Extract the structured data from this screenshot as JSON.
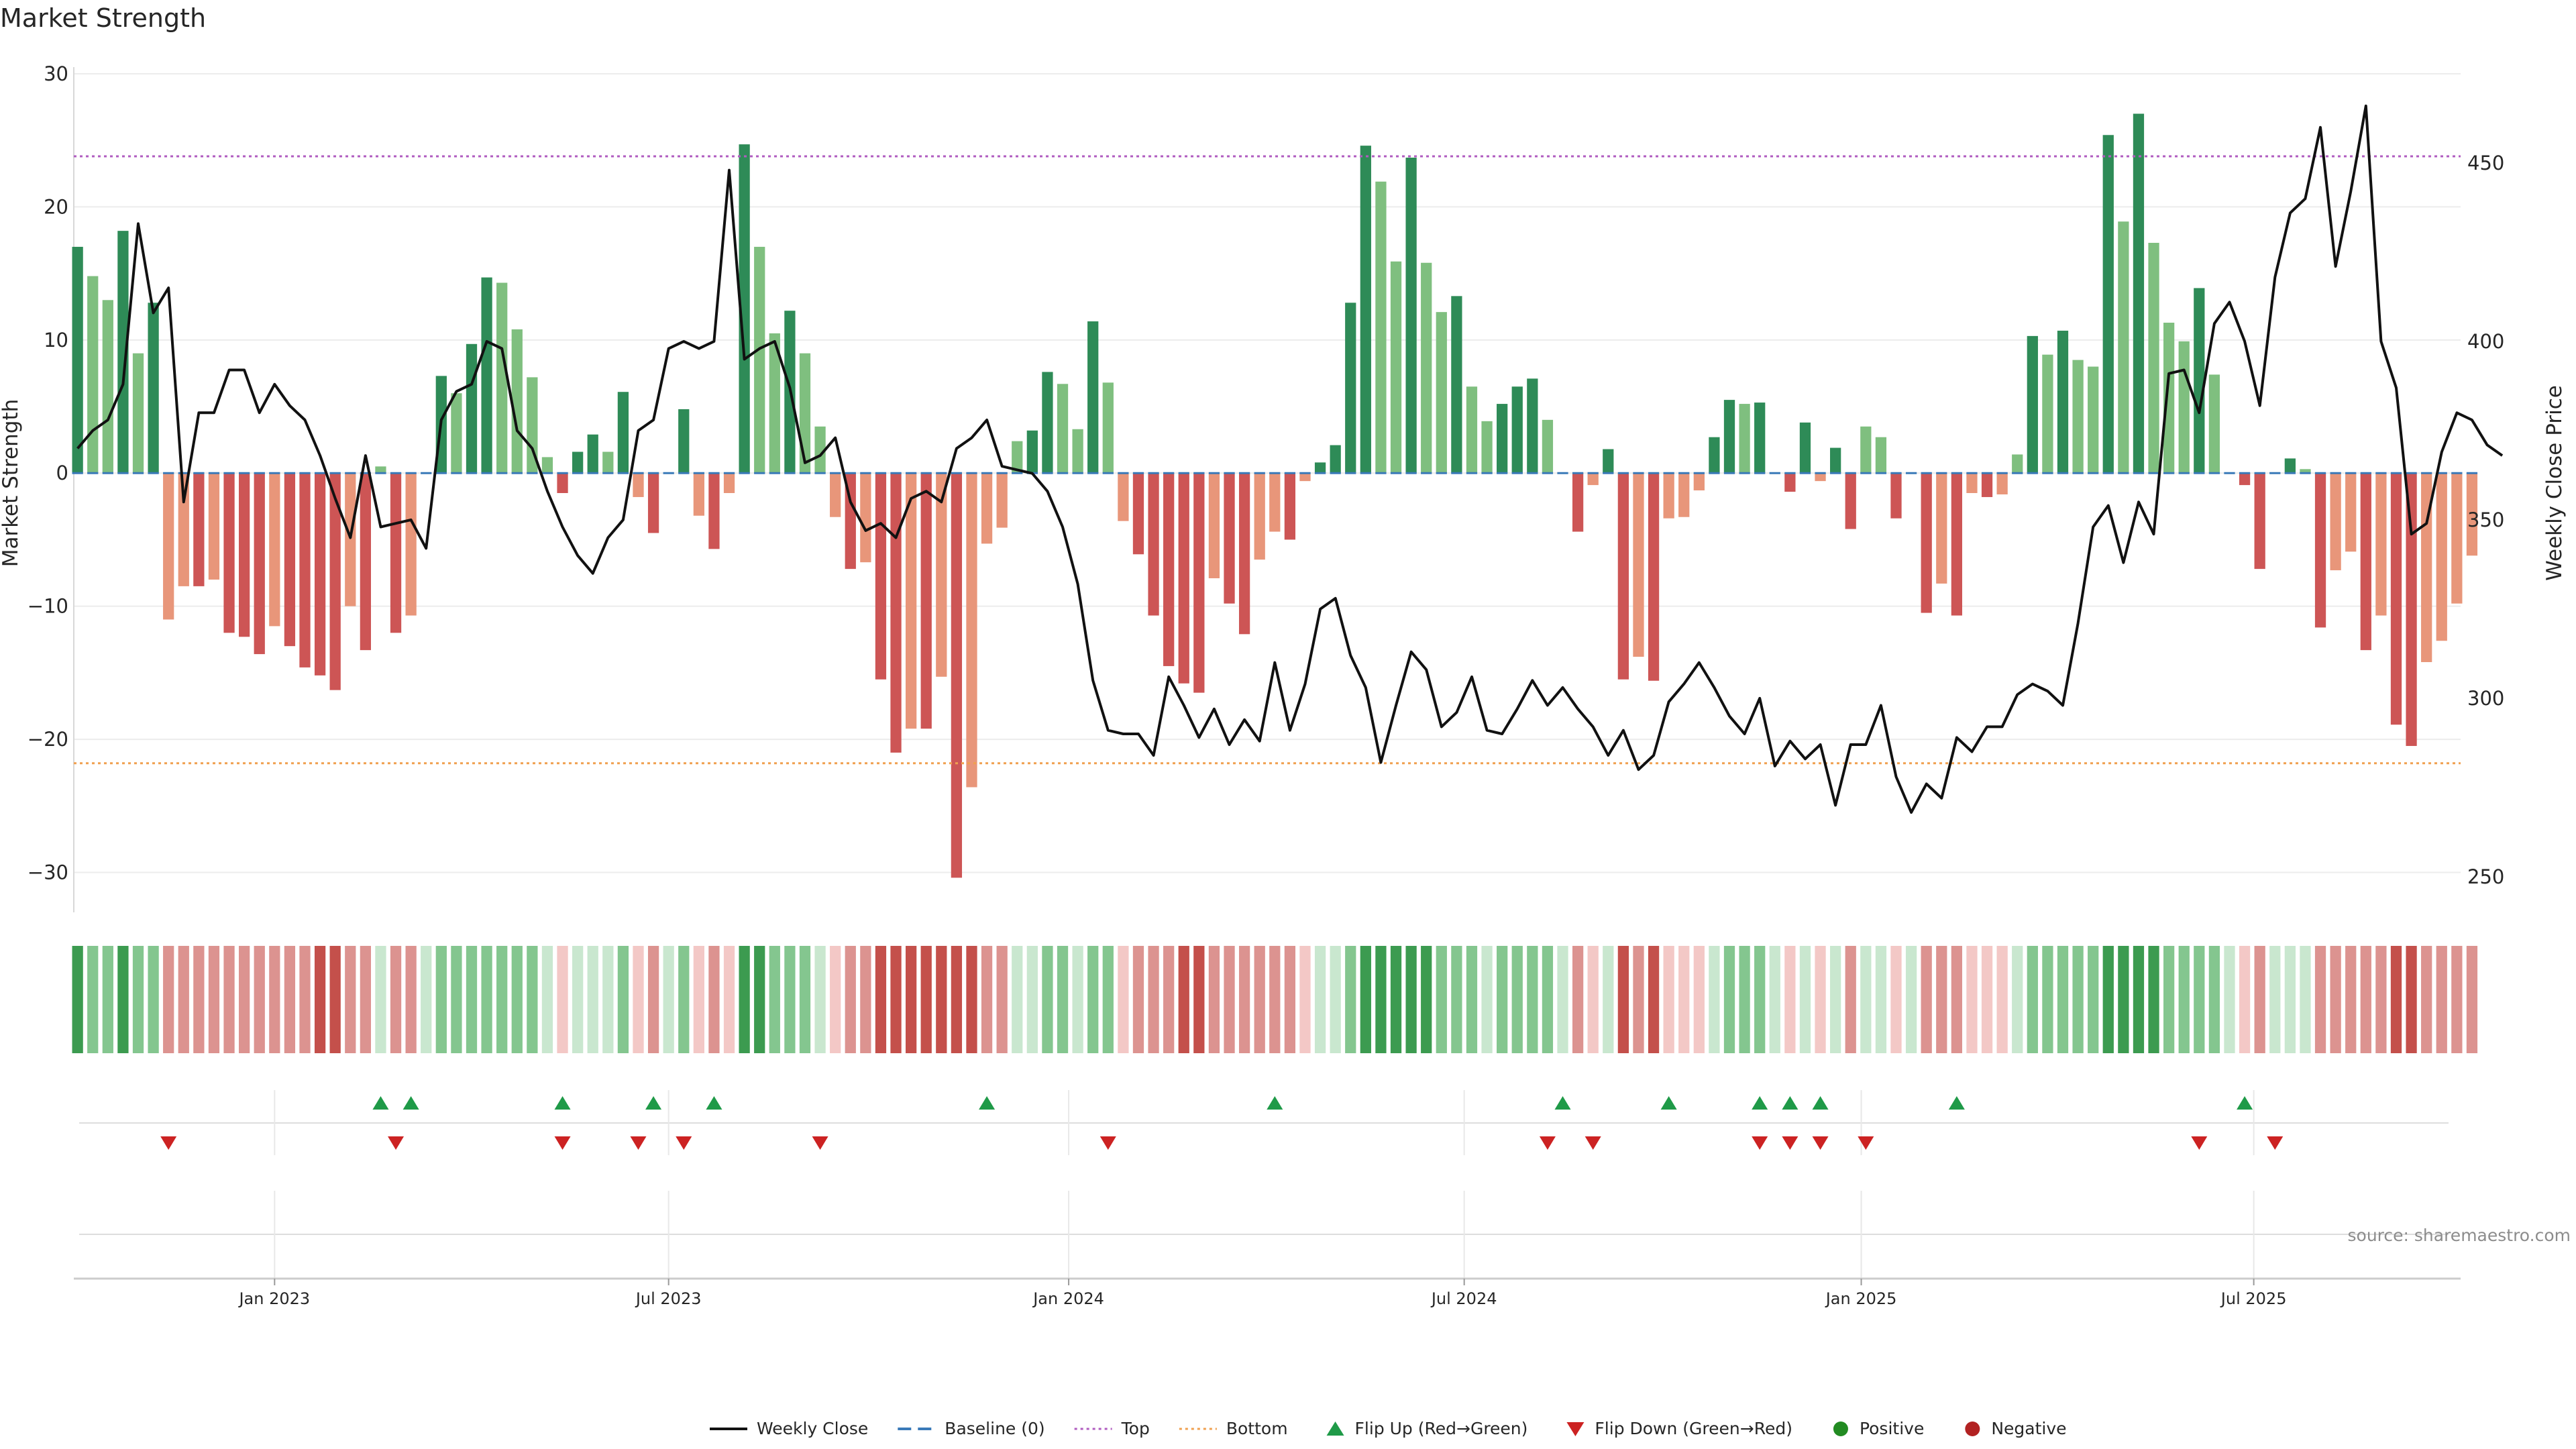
{
  "chart_data": {
    "type": "bar",
    "title": "Market Strength",
    "ylabel": "Market Strength",
    "y2label": "Weekly Close Price",
    "ylim": [
      -33,
      30
    ],
    "yticks": [
      30,
      20,
      10,
      0,
      -10,
      -20,
      -30
    ],
    "ytick_labels": [
      "30",
      "20",
      "10",
      "0",
      "−10",
      "−20",
      "−30"
    ],
    "y2lim": [
      240,
      475
    ],
    "y2ticks": [
      450,
      400,
      350,
      300,
      250
    ],
    "y2tick_labels": [
      "450",
      "400",
      "350",
      "300",
      "250"
    ],
    "x_start": "2022-09-30",
    "x_week_count": 158,
    "xticks": [
      {
        "label": "Jan 2023",
        "week": 13
      },
      {
        "label": "Jul 2023",
        "week": 39
      },
      {
        "label": "Jan 2024",
        "week": 65.4
      },
      {
        "label": "Jul 2024",
        "week": 91.5
      },
      {
        "label": "Jan 2025",
        "week": 117.7
      },
      {
        "label": "Jul 2025",
        "week": 143.6
      }
    ],
    "top_level": 23.8,
    "bottom_level": -21.8,
    "series": [
      {
        "name": "Market Strength",
        "values": [
          17.0,
          14.8,
          13.0,
          18.2,
          9.0,
          12.8,
          -11.0,
          -8.5,
          -8.5,
          -8.0,
          -12.0,
          -12.3,
          -13.6,
          -11.5,
          -13.0,
          -14.6,
          -15.2,
          -16.3,
          -10.0,
          -13.3,
          0.5,
          -12.0,
          -10.7,
          0,
          7.3,
          6.0,
          9.7,
          14.7,
          14.3,
          10.8,
          7.2,
          1.2,
          -1.5,
          1.6,
          2.9,
          1.6,
          6.1,
          -1.8,
          -4.5,
          0,
          4.8,
          -3.2,
          -5.7,
          -1.5,
          24.7,
          17.0,
          10.5,
          12.2,
          9.0,
          3.5,
          -3.3,
          -7.2,
          -6.7,
          -15.5,
          -21.0,
          -19.2,
          -19.2,
          -15.3,
          -30.4,
          -23.6,
          -5.3,
          -4.1,
          2.4,
          3.2,
          7.6,
          6.7,
          3.3,
          11.4,
          6.8,
          -3.6,
          -6.1,
          -10.7,
          -14.5,
          -15.8,
          -16.5,
          -7.9,
          -9.8,
          -12.1,
          -6.5,
          -4.4,
          -5.0,
          -0.6,
          0.8,
          2.1,
          12.8,
          24.6,
          21.9,
          15.9,
          23.7,
          15.8,
          12.1,
          13.3,
          6.5,
          3.9,
          5.2,
          6.5,
          7.1,
          4.0,
          0,
          -4.4,
          -0.9,
          1.8,
          -15.5,
          -13.8,
          -15.6,
          -3.4,
          -3.3,
          -1.3,
          2.7,
          5.5,
          5.2,
          5.3,
          0,
          -1.4,
          3.8,
          -0.6,
          1.9,
          -4.2,
          3.5,
          2.7,
          -3.4,
          0,
          -10.5,
          -8.3,
          -10.7,
          -1.5,
          -1.8,
          -1.6,
          1.4,
          10.3,
          8.9,
          10.7,
          8.5,
          8.0,
          25.4,
          18.9,
          27.0,
          17.3,
          11.3,
          9.9,
          13.9,
          7.4,
          0,
          -0.9,
          -7.2,
          0,
          1.1,
          0.3,
          -11.6,
          -7.3,
          -5.9,
          -13.3,
          -10.7,
          -18.9,
          -20.5,
          -14.2,
          -12.6,
          -9.8,
          -6.2
        ]
      },
      {
        "name": "Weekly Close",
        "values": [
          370,
          375,
          378,
          388,
          433,
          408,
          415,
          355,
          380,
          380,
          392,
          392,
          380,
          388,
          382,
          378,
          368,
          356,
          345,
          368,
          348,
          349,
          350,
          342,
          378,
          386,
          388,
          400,
          398,
          375,
          370,
          358,
          348,
          340,
          335,
          345,
          350,
          375,
          378,
          398,
          400,
          398,
          400,
          448,
          395,
          398,
          400,
          387,
          366,
          368,
          373,
          355,
          347,
          349,
          345,
          356,
          358,
          355,
          370,
          373,
          378,
          365,
          364,
          363,
          358,
          348,
          332,
          305,
          291,
          290,
          290,
          284,
          306,
          298,
          289,
          297,
          287,
          294,
          288,
          310,
          291,
          304,
          325,
          328,
          312,
          303,
          282,
          298,
          313,
          308,
          292,
          296,
          306,
          291,
          290,
          297,
          305,
          298,
          303,
          297,
          292,
          284,
          291,
          280,
          284,
          299,
          304,
          310,
          303,
          295,
          290,
          300,
          281,
          288,
          283,
          287,
          270,
          287,
          287,
          298,
          278,
          268,
          276,
          272,
          289,
          285,
          292,
          292,
          301,
          304,
          302,
          298,
          321,
          348,
          354,
          338,
          355,
          346,
          391,
          392,
          380,
          405,
          411,
          400,
          382,
          418,
          436,
          440,
          460,
          421,
          442,
          466,
          400,
          387,
          346,
          349,
          369,
          380,
          378,
          371,
          368
        ]
      }
    ],
    "flip_up_weeks": [
      20,
      22,
      32,
      38,
      42,
      60,
      79,
      98,
      105,
      111,
      113,
      115,
      124,
      143
    ],
    "flip_down_weeks": [
      6,
      21,
      32,
      37,
      40,
      49,
      68,
      97,
      100,
      111,
      113,
      115,
      118,
      140,
      145
    ],
    "heat_colors": {
      "strong_pos": "#3c9b50",
      "mid_pos": "#84c68f",
      "weak_pos": "#c9e7cf",
      "weak_neg": "#f3c8c6",
      "mid_neg": "#dc9390",
      "strong_neg": "#c4504b"
    },
    "bar_colors": {
      "pos_strong": "#2e8b57",
      "pos_weak": "#7fbf7f",
      "neg_strong": "#cd5555",
      "neg_weak": "#e8967a"
    },
    "line_color": "#111111",
    "top_color": "#b05cc0",
    "bottom_color": "#f0a050",
    "baseline_color": "#3a7ab8",
    "flip_up_color": "#1f9a48",
    "flip_down_color": "#cc2222",
    "positive_color": "#228b22",
    "negative_color": "#b22222",
    "legend": [
      {
        "key": "weekly_close",
        "label": "Weekly Close"
      },
      {
        "key": "baseline",
        "label": "Baseline (0)"
      },
      {
        "key": "top",
        "label": "Top"
      },
      {
        "key": "bottom",
        "label": "Bottom"
      },
      {
        "key": "flip_up",
        "label": "Flip Up (Red→Green)"
      },
      {
        "key": "flip_down",
        "label": "Flip Down (Green→Red)"
      },
      {
        "key": "positive",
        "label": "Positive"
      },
      {
        "key": "negative",
        "label": "Negative"
      }
    ],
    "source": "source: sharemaestro.com"
  }
}
